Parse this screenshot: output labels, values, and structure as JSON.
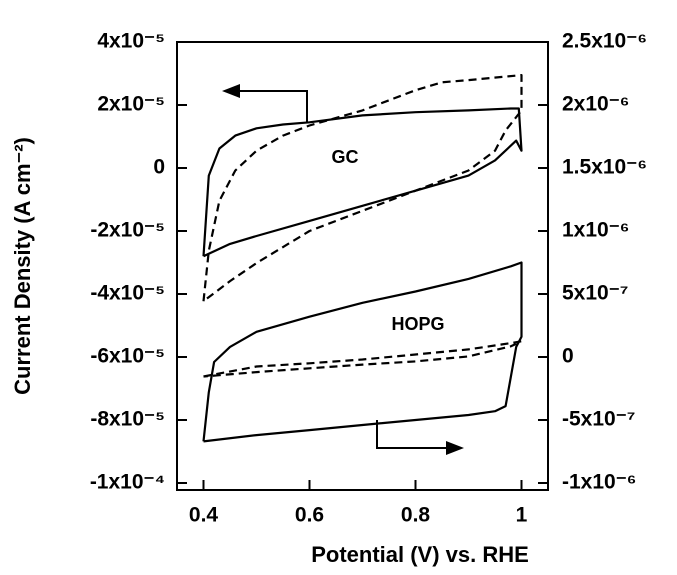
{
  "chart_data": {
    "type": "line",
    "xlabel": "Potential (V) vs. RHE",
    "ylabel": "Current Density (A cm⁻²)",
    "annotations": [
      "GC",
      "HOPG"
    ],
    "xlim": [
      0.35,
      1.05
    ],
    "xticks": [
      0.4,
      0.6,
      0.8,
      1
    ],
    "ylim": [
      -0.0001,
      4e-05
    ],
    "yticks": [
      {
        "value": -0.0001,
        "label": "-1x10⁻⁴"
      },
      {
        "value": -8e-05,
        "label": "-8x10⁻⁵"
      },
      {
        "value": -6e-05,
        "label": "-6x10⁻⁵"
      },
      {
        "value": -4e-05,
        "label": "-4x10⁻⁵"
      },
      {
        "value": -2e-05,
        "label": "-2x10⁻⁵"
      },
      0,
      {
        "value": 2e-05,
        "label": "2x10⁻⁵"
      },
      {
        "value": 4e-05,
        "label": "4x10⁻⁵"
      }
    ],
    "y2lim": [
      -1e-06,
      2.5e-06
    ],
    "y2ticks": [
      {
        "value": -1e-06,
        "label": "-1x10⁻⁶"
      },
      {
        "value": -5e-07,
        "label": "-5x10⁻⁷"
      },
      0,
      {
        "value": 5e-07,
        "label": "5x10⁻⁷"
      },
      {
        "value": 1e-06,
        "label": "1x10⁻⁶"
      },
      {
        "value": 1.5e-06,
        "label": "1.5x10⁻⁶"
      },
      {
        "value": 2e-06,
        "label": "2x10⁻⁶"
      },
      {
        "value": 2.5e-06,
        "label": "2.5x10⁻⁶"
      }
    ],
    "series": [
      {
        "color": "#000000",
        "dash": false,
        "axis": "y",
        "x": [
          0.4,
          0.41,
          0.43,
          0.46,
          0.5,
          0.55,
          0.6,
          0.7,
          0.8,
          0.9,
          0.98,
          0.995,
          1.0,
          0.99,
          0.95,
          0.9,
          0.8,
          0.7,
          0.6,
          0.5,
          0.45,
          0.4
        ],
        "values": [
          -2.8e-05,
          -2.4e-06,
          6.2e-06,
          1.03e-05,
          1.26e-05,
          1.38e-05,
          1.45e-05,
          1.67e-05,
          1.77e-05,
          1.83e-05,
          1.89e-05,
          1.89e-05,
          5.5e-06,
          8.7e-06,
          2.4e-06,
          -2.4e-06,
          -7.2e-06,
          -1.2e-05,
          -1.68e-05,
          -2.16e-05,
          -2.41e-05,
          -2.8e-05
        ]
      },
      {
        "color": "#000000",
        "dash": true,
        "axis": "y",
        "x": [
          0.4,
          0.41,
          0.43,
          0.46,
          0.5,
          0.55,
          0.6,
          0.7,
          0.8,
          0.85,
          0.9,
          1.0,
          1.0,
          0.97,
          0.95,
          0.9,
          0.8,
          0.7,
          0.6,
          0.5,
          0.45,
          0.4
        ],
        "values": [
          -4.23e-05,
          -2.63e-05,
          -1.04e-05,
          -8e-07,
          5.5e-06,
          1.03e-05,
          1.35e-05,
          1.83e-05,
          2.47e-05,
          2.72e-05,
          2.79e-05,
          2.95e-05,
          1.83e-05,
          1.19e-05,
          5.5e-06,
          -8e-07,
          -7.2e-06,
          -1.36e-05,
          -2e-05,
          -3.02e-05,
          -3.59e-05,
          -4.23e-05
        ]
      },
      {
        "color": "#000000",
        "dash": false,
        "axis": "y2",
        "x": [
          0.4,
          0.41,
          0.42,
          0.45,
          0.5,
          0.6,
          0.7,
          0.8,
          0.9,
          0.98,
          1.0,
          1.0,
          0.99,
          0.97,
          0.95,
          0.9,
          0.8,
          0.7,
          0.6,
          0.5,
          0.4
        ],
        "values": [
          -6.7e-07,
          -2.8e-07,
          -4e-08,
          8e-08,
          2e-07,
          3.2e-07,
          4.3e-07,
          5.2e-07,
          6.2e-07,
          7.2e-07,
          7.5e-07,
          1.6e-07,
          8e-08,
          -3.9e-07,
          -4.3e-07,
          -4.6e-07,
          -5e-07,
          -5.4e-07,
          -5.8e-07,
          -6.2e-07,
          -6.7e-07
        ]
      },
      {
        "color": "#000000",
        "dash": true,
        "axis": "y2",
        "x": [
          0.4,
          0.5,
          0.6,
          0.7,
          0.8,
          0.9,
          0.98,
          1.0,
          0.98,
          0.9,
          0.8,
          0.7,
          0.6,
          0.5,
          0.4
        ],
        "values": [
          -1.55e-07,
          -7.5e-08,
          -5e-08,
          -2e-08,
          2e-08,
          6e-08,
          1.1e-07,
          1.25e-07,
          8.5e-08,
          5e-09,
          -3.5e-08,
          -6e-08,
          -9e-08,
          -1.2e-07,
          -1.55e-07
        ]
      }
    ]
  }
}
